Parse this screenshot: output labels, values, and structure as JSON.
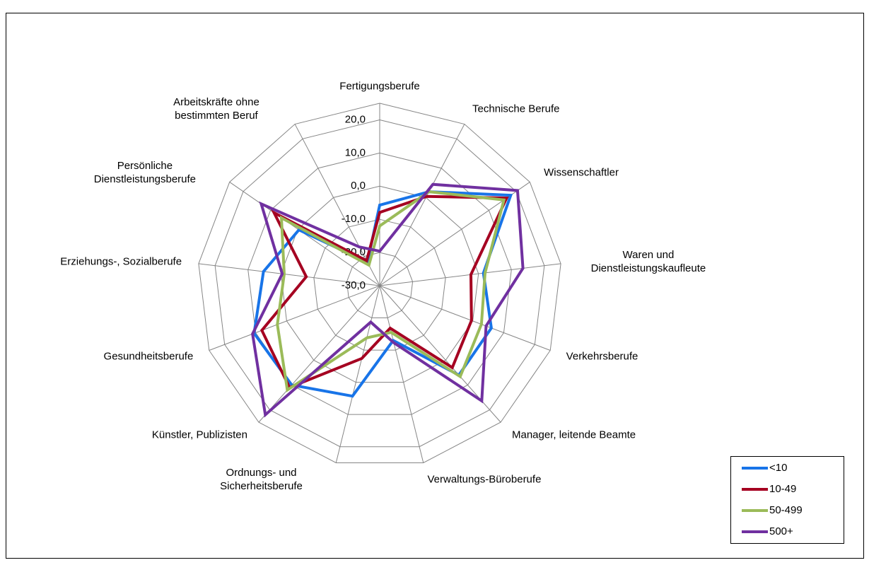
{
  "chart_data": {
    "type": "radar",
    "categories": [
      "Fertigungsberufe",
      "Technische Berufe",
      "Wissenschaftler",
      "Waren und Dienstleistungskaufleute",
      "Verkehrsberufe",
      "Manager, leitende Beamte",
      "Verwaltungs-Büroberufe",
      "Ordnungs- und Sicherheitsberufe",
      "Künstler, Publizisten",
      "Gesundheitsberufe",
      "Erziehungs-, Sozialberufe",
      "Persönliche Dienstleistungsberufe",
      "Arbeitskräfte ohne bestimmten Beruf"
    ],
    "series": [
      {
        "name": "<10",
        "color": "#1874e8",
        "values": [
          -5.7,
          2,
          18,
          1.5,
          6,
          6,
          -13,
          4.3,
          10,
          10.5,
          5.3,
          -0.4,
          -22
        ]
      },
      {
        "name": "10-49",
        "color": "#a50021",
        "values": [
          -7.9,
          0.4,
          16.5,
          -2.3,
          -0.4,
          3,
          -16.8,
          -7.4,
          11,
          8,
          -7.7,
          8.7,
          -21.5
        ]
      },
      {
        "name": "50-499",
        "color": "#9bbb59",
        "values": [
          -12,
          2,
          15.5,
          2,
          2.8,
          6.6,
          -15.5,
          -13.8,
          12,
          3,
          -1,
          6,
          -23
        ]
      },
      {
        "name": "500+",
        "color": "#7030a0",
        "values": [
          -19.6,
          4.5,
          20.5,
          13.5,
          4.3,
          16.4,
          -12.3,
          -18.7,
          22,
          11,
          -0.4,
          13.4,
          -16.8
        ]
      }
    ],
    "ylim": [
      -30,
      25
    ],
    "yticks": [
      {
        "value": -30,
        "label": "-30,0"
      },
      {
        "value": -20,
        "label": "-20,0"
      },
      {
        "value": -10,
        "label": "-10,0"
      },
      {
        "value": 0,
        "label": "0,0"
      },
      {
        "value": 10,
        "label": "10,0"
      },
      {
        "value": 20,
        "label": "20,0"
      }
    ],
    "grid": true,
    "legend": "lower right"
  }
}
